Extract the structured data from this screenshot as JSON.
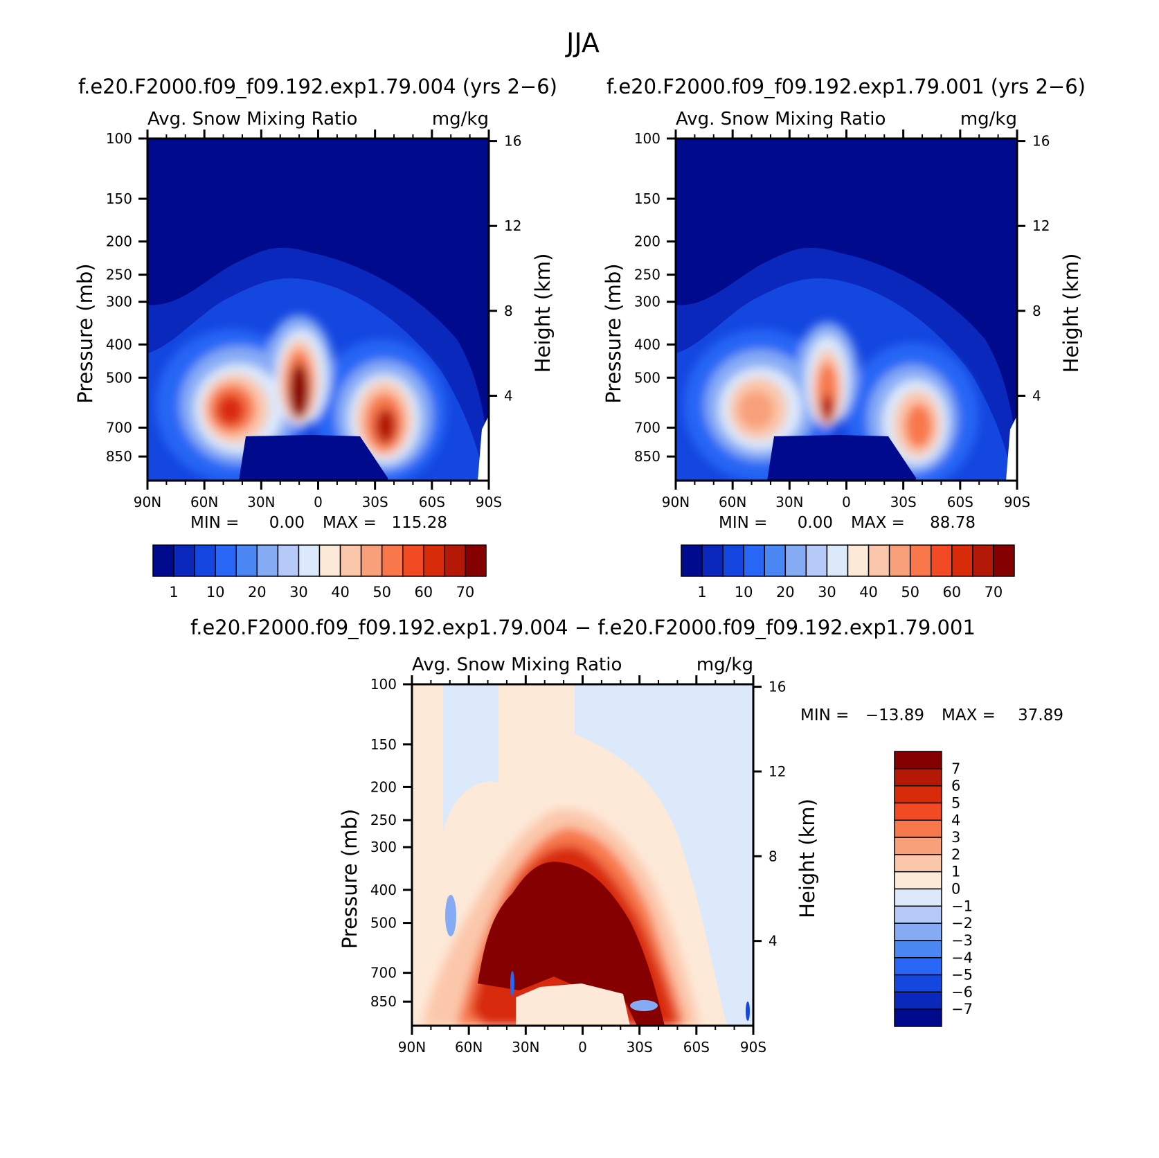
{
  "season_title": "JJA",
  "chart_data": [
    {
      "type": "heatmap",
      "title": "f.e20.F2000.f09_f09.192.exp1.79.004 (yrs 2−6)",
      "variable": "Avg. Snow Mixing Ratio",
      "units": "mg/kg",
      "xlabel": "",
      "ylabel": "Pressure (mb)",
      "y2label": "Height (km)",
      "x_tick_labels": [
        "90N",
        "60N",
        "30N",
        "0",
        "30S",
        "60S",
        "90S"
      ],
      "y_ticks": [
        100,
        150,
        200,
        250,
        300,
        400,
        500,
        700,
        850
      ],
      "y_scale": "log",
      "y2_ticks": [
        16,
        12,
        8,
        4
      ],
      "ylim": [
        100,
        1000
      ],
      "min_label": "MIN =",
      "min_value": "0.00",
      "max_label": "MAX =",
      "max_value": "115.28",
      "colorbar_labels": [
        "1",
        "10",
        "20",
        "30",
        "40",
        "50",
        "60",
        "70"
      ],
      "colorbar_colors": [
        "#000a8c",
        "#0a28bc",
        "#1446e0",
        "#2866f5",
        "#4b87f2",
        "#86abf5",
        "#b5caf9",
        "#dbe9fb",
        "#fde9d8",
        "#fbc7ab",
        "#f8a07a",
        "#f8784b",
        "#f24a22",
        "#d82b0a",
        "#b31906",
        "#850000"
      ],
      "peaks": [
        {
          "lat": -10,
          "p": 520,
          "value": 115.28,
          "note": "max"
        },
        {
          "lat": -45,
          "p": 570,
          "value": 70
        },
        {
          "lat": 35,
          "p": 620,
          "value": 70
        }
      ]
    },
    {
      "type": "heatmap",
      "title": "f.e20.F2000.f09_f09.192.exp1.79.001 (yrs 2−6)",
      "variable": "Avg. Snow Mixing Ratio",
      "units": "mg/kg",
      "xlabel": "",
      "ylabel": "Pressure (mb)",
      "y2label": "Height (km)",
      "x_tick_labels": [
        "90N",
        "60N",
        "30N",
        "0",
        "30S",
        "60S",
        "90S"
      ],
      "y_ticks": [
        100,
        150,
        200,
        250,
        300,
        400,
        500,
        700,
        850
      ],
      "y_scale": "log",
      "y2_ticks": [
        16,
        12,
        8,
        4
      ],
      "ylim": [
        100,
        1000
      ],
      "min_label": "MIN =",
      "min_value": "0.00",
      "max_label": "MAX =",
      "max_value": "88.78",
      "colorbar_labels": [
        "1",
        "10",
        "20",
        "30",
        "40",
        "50",
        "60",
        "70"
      ],
      "colorbar_colors": [
        "#000a8c",
        "#0a28bc",
        "#1446e0",
        "#2866f5",
        "#4b87f2",
        "#86abf5",
        "#b5caf9",
        "#dbe9fb",
        "#fde9d8",
        "#fbc7ab",
        "#f8a07a",
        "#f8784b",
        "#f24a22",
        "#d82b0a",
        "#b31906",
        "#850000"
      ],
      "peaks": [
        {
          "lat": -10,
          "p": 560,
          "value": 88.78,
          "note": "max"
        },
        {
          "lat": -45,
          "p": 570,
          "value": 45
        },
        {
          "lat": 35,
          "p": 630,
          "value": 50
        }
      ]
    },
    {
      "type": "heatmap",
      "title": "f.e20.F2000.f09_f09.192.exp1.79.004 − f.e20.F2000.f09_f09.192.exp1.79.001",
      "variable": "Avg. Snow Mixing Ratio",
      "units": "mg/kg",
      "xlabel": "",
      "ylabel": "Pressure (mb)",
      "y2label": "Height (km)",
      "x_tick_labels": [
        "90N",
        "60N",
        "30N",
        "0",
        "30S",
        "60S",
        "90S"
      ],
      "y_ticks": [
        100,
        150,
        200,
        250,
        300,
        400,
        500,
        700,
        850
      ],
      "y_scale": "log",
      "y2_ticks": [
        16,
        12,
        8,
        4
      ],
      "ylim": [
        100,
        1000
      ],
      "min_label": "MIN =",
      "min_value": "−13.89",
      "max_label": "MAX =",
      "max_value": "37.89",
      "colorbar_labels": [
        "7",
        "6",
        "5",
        "4",
        "3",
        "2",
        "1",
        "0",
        "−1",
        "−2",
        "−3",
        "−4",
        "−5",
        "−6",
        "−7"
      ],
      "colorbar_colors": [
        "#850000",
        "#b31906",
        "#d82b0a",
        "#f24a22",
        "#f8784b",
        "#f8a07a",
        "#fbc7ab",
        "#fde9d8",
        "#dbe9fb",
        "#b5caf9",
        "#86abf5",
        "#4b87f2",
        "#2866f5",
        "#1446e0",
        "#0a28bc",
        "#000a8c"
      ]
    }
  ]
}
